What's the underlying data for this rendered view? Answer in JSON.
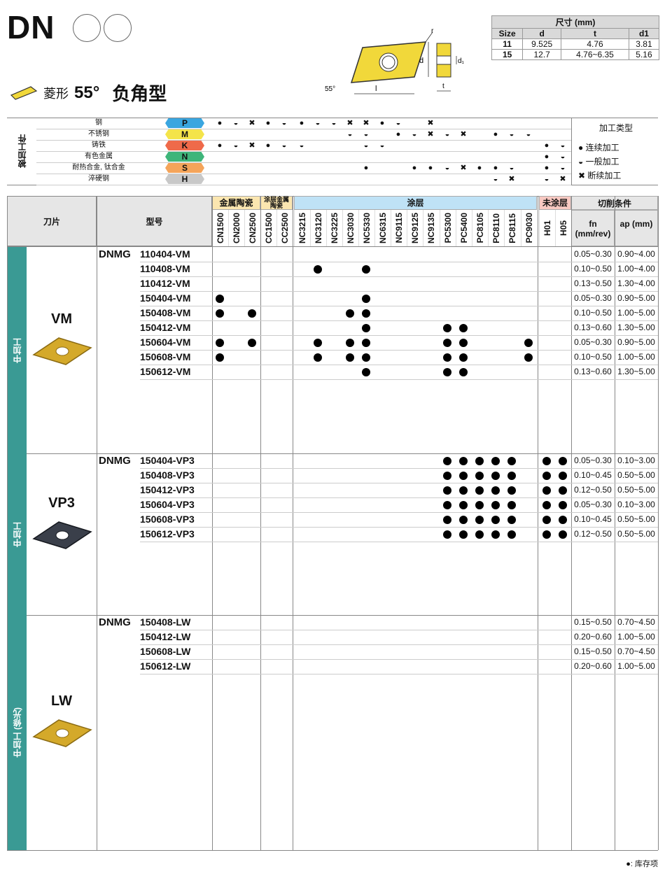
{
  "header": {
    "code": "DN",
    "shape_label": "菱形",
    "angle": "55°",
    "type_label": "负角型"
  },
  "dims": {
    "title": "尺寸 (mm)",
    "cols": [
      "Size",
      "d",
      "t",
      "d1"
    ],
    "rows": [
      [
        "11",
        "9.525",
        "4.76",
        "3.81"
      ],
      [
        "15",
        "12.7",
        "4.76~6.35",
        "5.16"
      ]
    ]
  },
  "diagram": {
    "r": "r",
    "d": "d",
    "d1": "d₁",
    "l": "l",
    "t": "t",
    "angle": "55°"
  },
  "workpiece": {
    "side_label": "被加工件",
    "materials": [
      {
        "name": "钢",
        "code": "P",
        "color": "#3aa6e0"
      },
      {
        "name": "不锈钢",
        "code": "M",
        "color": "#f4e44a"
      },
      {
        "name": "铸铁",
        "code": "K",
        "color": "#ef6a4a"
      },
      {
        "name": "有色金属",
        "code": "N",
        "color": "#3fb57a"
      },
      {
        "name": "耐热合金, 钛合金",
        "code": "S",
        "color": "#f4a45a"
      },
      {
        "name": "淬硬钢",
        "code": "H",
        "color": "#c8c8c8"
      }
    ],
    "legend_title": "加工类型",
    "legend": [
      {
        "sym": "●",
        "text": "连续加工"
      },
      {
        "sym": "◒",
        "text": "一般加工"
      },
      {
        "sym": "✖",
        "text": "断续加工"
      }
    ]
  },
  "table_header": {
    "insert": "刀片",
    "model": "型号",
    "groups": [
      "金属陶瓷",
      "涂层金属陶瓷",
      "涂层",
      "未涂层",
      "切削条件"
    ],
    "grades": [
      "CN1500",
      "CN2000",
      "CN2500",
      "CC1500",
      "CC2500",
      "NC3215",
      "NC3120",
      "NC3225",
      "NC3030",
      "NC5330",
      "NC6315",
      "NC9115",
      "NC9125",
      "NC9135",
      "PC5300",
      "PC5400",
      "PC8105",
      "PC8110",
      "PC8115",
      "PC9030",
      "H01",
      "H05"
    ],
    "fn": "fn (mm/rev)",
    "ap": "ap (mm)"
  },
  "sections": [
    {
      "group": "中加工",
      "insert": "VM",
      "prefix": "DNMG",
      "rows": [
        {
          "m": "110404-VM",
          "fn": "0.05~0.30",
          "ap": "0.90~4.00"
        },
        {
          "m": "110408-VM",
          "fn": "0.10~0.50",
          "ap": "1.00~4.00"
        },
        {
          "m": "110412-VM",
          "fn": "0.13~0.50",
          "ap": "1.30~4.00"
        },
        {
          "m": "150404-VM",
          "fn": "0.05~0.30",
          "ap": "0.90~5.00"
        },
        {
          "m": "150408-VM",
          "fn": "0.10~0.50",
          "ap": "1.00~5.00"
        },
        {
          "m": "150412-VM",
          "fn": "0.13~0.60",
          "ap": "1.30~5.00"
        },
        {
          "m": "150604-VM",
          "fn": "0.05~0.30",
          "ap": "0.90~5.00"
        },
        {
          "m": "150608-VM",
          "fn": "0.10~0.50",
          "ap": "1.00~5.00"
        },
        {
          "m": "150612-VM",
          "fn": "0.13~0.60",
          "ap": "1.30~5.00"
        }
      ]
    },
    {
      "group": "中加工",
      "insert": "VP3",
      "prefix": "DNMG",
      "rows": [
        {
          "m": "150404-VP3",
          "fn": "0.05~0.30",
          "ap": "0.10~3.00"
        },
        {
          "m": "150408-VP3",
          "fn": "0.10~0.45",
          "ap": "0.50~5.00"
        },
        {
          "m": "150412-VP3",
          "fn": "0.12~0.50",
          "ap": "0.50~5.00"
        },
        {
          "m": "150604-VP3",
          "fn": "0.05~0.30",
          "ap": "0.10~3.00"
        },
        {
          "m": "150608-VP3",
          "fn": "0.10~0.45",
          "ap": "0.50~5.00"
        },
        {
          "m": "150612-VP3",
          "fn": "0.12~0.50",
          "ap": "0.50~5.00"
        }
      ]
    },
    {
      "group": "中加工 (修光)",
      "insert": "LW",
      "prefix": "DNMG",
      "rows": [
        {
          "m": "150408-LW",
          "fn": "0.15~0.50",
          "ap": "0.70~4.50"
        },
        {
          "m": "150412-LW",
          "fn": "0.20~0.60",
          "ap": "1.00~5.00"
        },
        {
          "m": "150608-LW",
          "fn": "0.15~0.50",
          "ap": "0.70~4.50"
        },
        {
          "m": "150612-LW",
          "fn": "0.20~0.60",
          "ap": "1.00~5.00"
        }
      ]
    }
  ],
  "footer": {
    "note": "●: 库存项"
  }
}
